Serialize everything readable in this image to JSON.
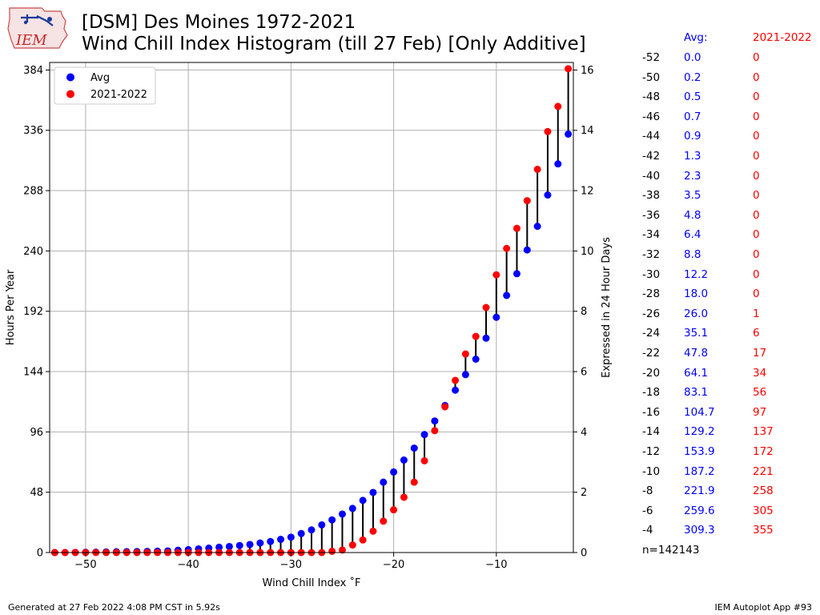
{
  "header": {
    "title_line1": "[DSM] Des Moines 1972-2021",
    "title_line2": "Wind Chill Index Histogram (till 27 Feb) [Only Additive]",
    "logo_text": "IEM"
  },
  "colors": {
    "avg": "#0000ff",
    "season": "#ff0000",
    "connector": "#000000",
    "grid": "#b0b0b0"
  },
  "chart_data": {
    "type": "scatter",
    "xlabel": "Wind Chill Index ˚F",
    "ylabel": "Hours Per Year",
    "y2label": "Expressed in 24 Hour Days",
    "xlim": [
      -53.5,
      -2.5
    ],
    "ylim": [
      0,
      390
    ],
    "y2lim": [
      0,
      16.25
    ],
    "xticks": [
      -50,
      -40,
      -30,
      -20,
      -10
    ],
    "xticklabels": [
      "−50",
      "−40",
      "−30",
      "−20",
      "−10"
    ],
    "yticks": [
      0,
      48,
      96,
      144,
      192,
      240,
      288,
      336,
      384
    ],
    "y2ticks": [
      0,
      2,
      4,
      6,
      8,
      10,
      12,
      14,
      16
    ],
    "grid": true,
    "legend_position": "top-left",
    "x": [
      -53,
      -52,
      -51,
      -50,
      -49,
      -48,
      -47,
      -46,
      -45,
      -44,
      -43,
      -42,
      -41,
      -40,
      -39,
      -38,
      -37,
      -36,
      -35,
      -34,
      -33,
      -32,
      -31,
      -30,
      -29,
      -28,
      -27,
      -26,
      -25,
      -24,
      -23,
      -22,
      -21,
      -20,
      -19,
      -18,
      -17,
      -16,
      -15,
      -14,
      -13,
      -12,
      -11,
      -10,
      -9,
      -8,
      -7,
      -6,
      -5,
      -4,
      -3
    ],
    "series": [
      {
        "name": "Avg",
        "color": "#0000ff",
        "values": [
          0.0,
          0.0,
          0.1,
          0.2,
          0.3,
          0.5,
          0.6,
          0.7,
          0.8,
          0.9,
          1.1,
          1.3,
          1.8,
          2.3,
          2.9,
          3.5,
          4.2,
          4.8,
          5.6,
          6.4,
          7.6,
          8.8,
          10.5,
          12.2,
          15.1,
          18.0,
          22.0,
          26.0,
          30.6,
          35.1,
          41.5,
          47.8,
          56.0,
          64.1,
          73.6,
          83.1,
          93.9,
          104.7,
          117.0,
          129.2,
          141.6,
          153.9,
          170.6,
          187.2,
          204.6,
          221.9,
          240.8,
          259.6,
          284.5,
          309.3,
          333.0
        ]
      },
      {
        "name": "2021-2022",
        "color": "#ff0000",
        "values": [
          0,
          0,
          0,
          0,
          0,
          0,
          0,
          0,
          0,
          0,
          0,
          0,
          0,
          0,
          0,
          0,
          0,
          0,
          0,
          0,
          0,
          0,
          0,
          0,
          0,
          0,
          0,
          1,
          2,
          6,
          10,
          17,
          25,
          34,
          44,
          56,
          73,
          97,
          116,
          137,
          158,
          172,
          195,
          221,
          242,
          258,
          280,
          305,
          335,
          355,
          385
        ]
      }
    ]
  },
  "table": {
    "headers": {
      "wci": "",
      "avg": "Avg:",
      "season": "2021-2022"
    },
    "rows": [
      {
        "wci": "-52",
        "avg": "0.0",
        "season": "0"
      },
      {
        "wci": "-50",
        "avg": "0.2",
        "season": "0"
      },
      {
        "wci": "-48",
        "avg": "0.5",
        "season": "0"
      },
      {
        "wci": "-46",
        "avg": "0.7",
        "season": "0"
      },
      {
        "wci": "-44",
        "avg": "0.9",
        "season": "0"
      },
      {
        "wci": "-42",
        "avg": "1.3",
        "season": "0"
      },
      {
        "wci": "-40",
        "avg": "2.3",
        "season": "0"
      },
      {
        "wci": "-38",
        "avg": "3.5",
        "season": "0"
      },
      {
        "wci": "-36",
        "avg": "4.8",
        "season": "0"
      },
      {
        "wci": "-34",
        "avg": "6.4",
        "season": "0"
      },
      {
        "wci": "-32",
        "avg": "8.8",
        "season": "0"
      },
      {
        "wci": "-30",
        "avg": "12.2",
        "season": "0"
      },
      {
        "wci": "-28",
        "avg": "18.0",
        "season": "0"
      },
      {
        "wci": "-26",
        "avg": "26.0",
        "season": "1"
      },
      {
        "wci": "-24",
        "avg": "35.1",
        "season": "6"
      },
      {
        "wci": "-22",
        "avg": "47.8",
        "season": "17"
      },
      {
        "wci": "-20",
        "avg": "64.1",
        "season": "34"
      },
      {
        "wci": "-18",
        "avg": "83.1",
        "season": "56"
      },
      {
        "wci": "-16",
        "avg": "104.7",
        "season": "97"
      },
      {
        "wci": "-14",
        "avg": "129.2",
        "season": "137"
      },
      {
        "wci": "-12",
        "avg": "153.9",
        "season": "172"
      },
      {
        "wci": "-10",
        "avg": "187.2",
        "season": "221"
      },
      {
        "wci": "-8",
        "avg": "221.9",
        "season": "258"
      },
      {
        "wci": "-6",
        "avg": "259.6",
        "season": "305"
      },
      {
        "wci": "-4",
        "avg": "309.3",
        "season": "355"
      }
    ],
    "count": "n=142143"
  },
  "footer": {
    "left": "Generated at 27 Feb 2022 4:08 PM CST in 5.92s",
    "right": "IEM Autoplot App #93"
  }
}
